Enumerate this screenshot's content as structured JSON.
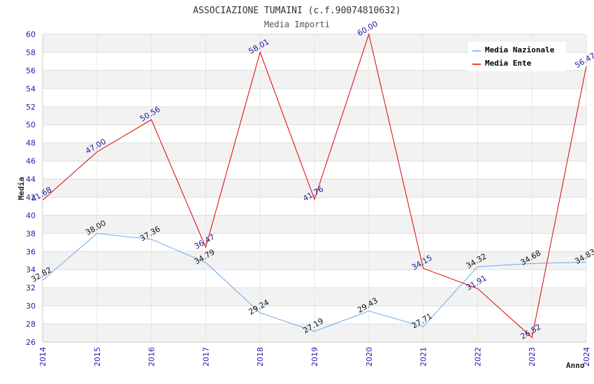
{
  "chart_data": {
    "type": "line",
    "title": "ASSOCIAZIONE TUMAINI (c.f.90074810632)",
    "subtitle": "Media Importi",
    "xlabel": "Anno",
    "ylabel": "Media",
    "x": [
      "2014",
      "2015",
      "2016",
      "2017",
      "2018",
      "2019",
      "2020",
      "2021",
      "2022",
      "2023",
      "2024"
    ],
    "ylim": [
      26,
      60
    ],
    "ytick_step": 2,
    "grid": true,
    "legend_position": "top-right",
    "series": [
      {
        "name": "Media Nazionale",
        "color": "#66aaee",
        "values": [
          32.82,
          38.0,
          37.36,
          34.79,
          29.24,
          27.19,
          29.43,
          27.71,
          34.32,
          34.68,
          34.83
        ],
        "labels": [
          "32.82",
          "38.00",
          "37.36",
          "34.79",
          "29.24",
          "27.19",
          "29.43",
          "27.71",
          "34.32",
          "34.68",
          "34.83"
        ]
      },
      {
        "name": "Media Ente",
        "color": "#dd0000",
        "values": [
          41.68,
          47.0,
          50.56,
          36.47,
          58.01,
          41.76,
          60.0,
          34.15,
          31.91,
          26.52,
          56.47
        ],
        "labels": [
          "41.68",
          "47.00",
          "50.56",
          "36.47",
          "58.01",
          "41.76",
          "60.00",
          "34.15",
          "31.91",
          "26.52",
          "56.47"
        ]
      }
    ]
  }
}
